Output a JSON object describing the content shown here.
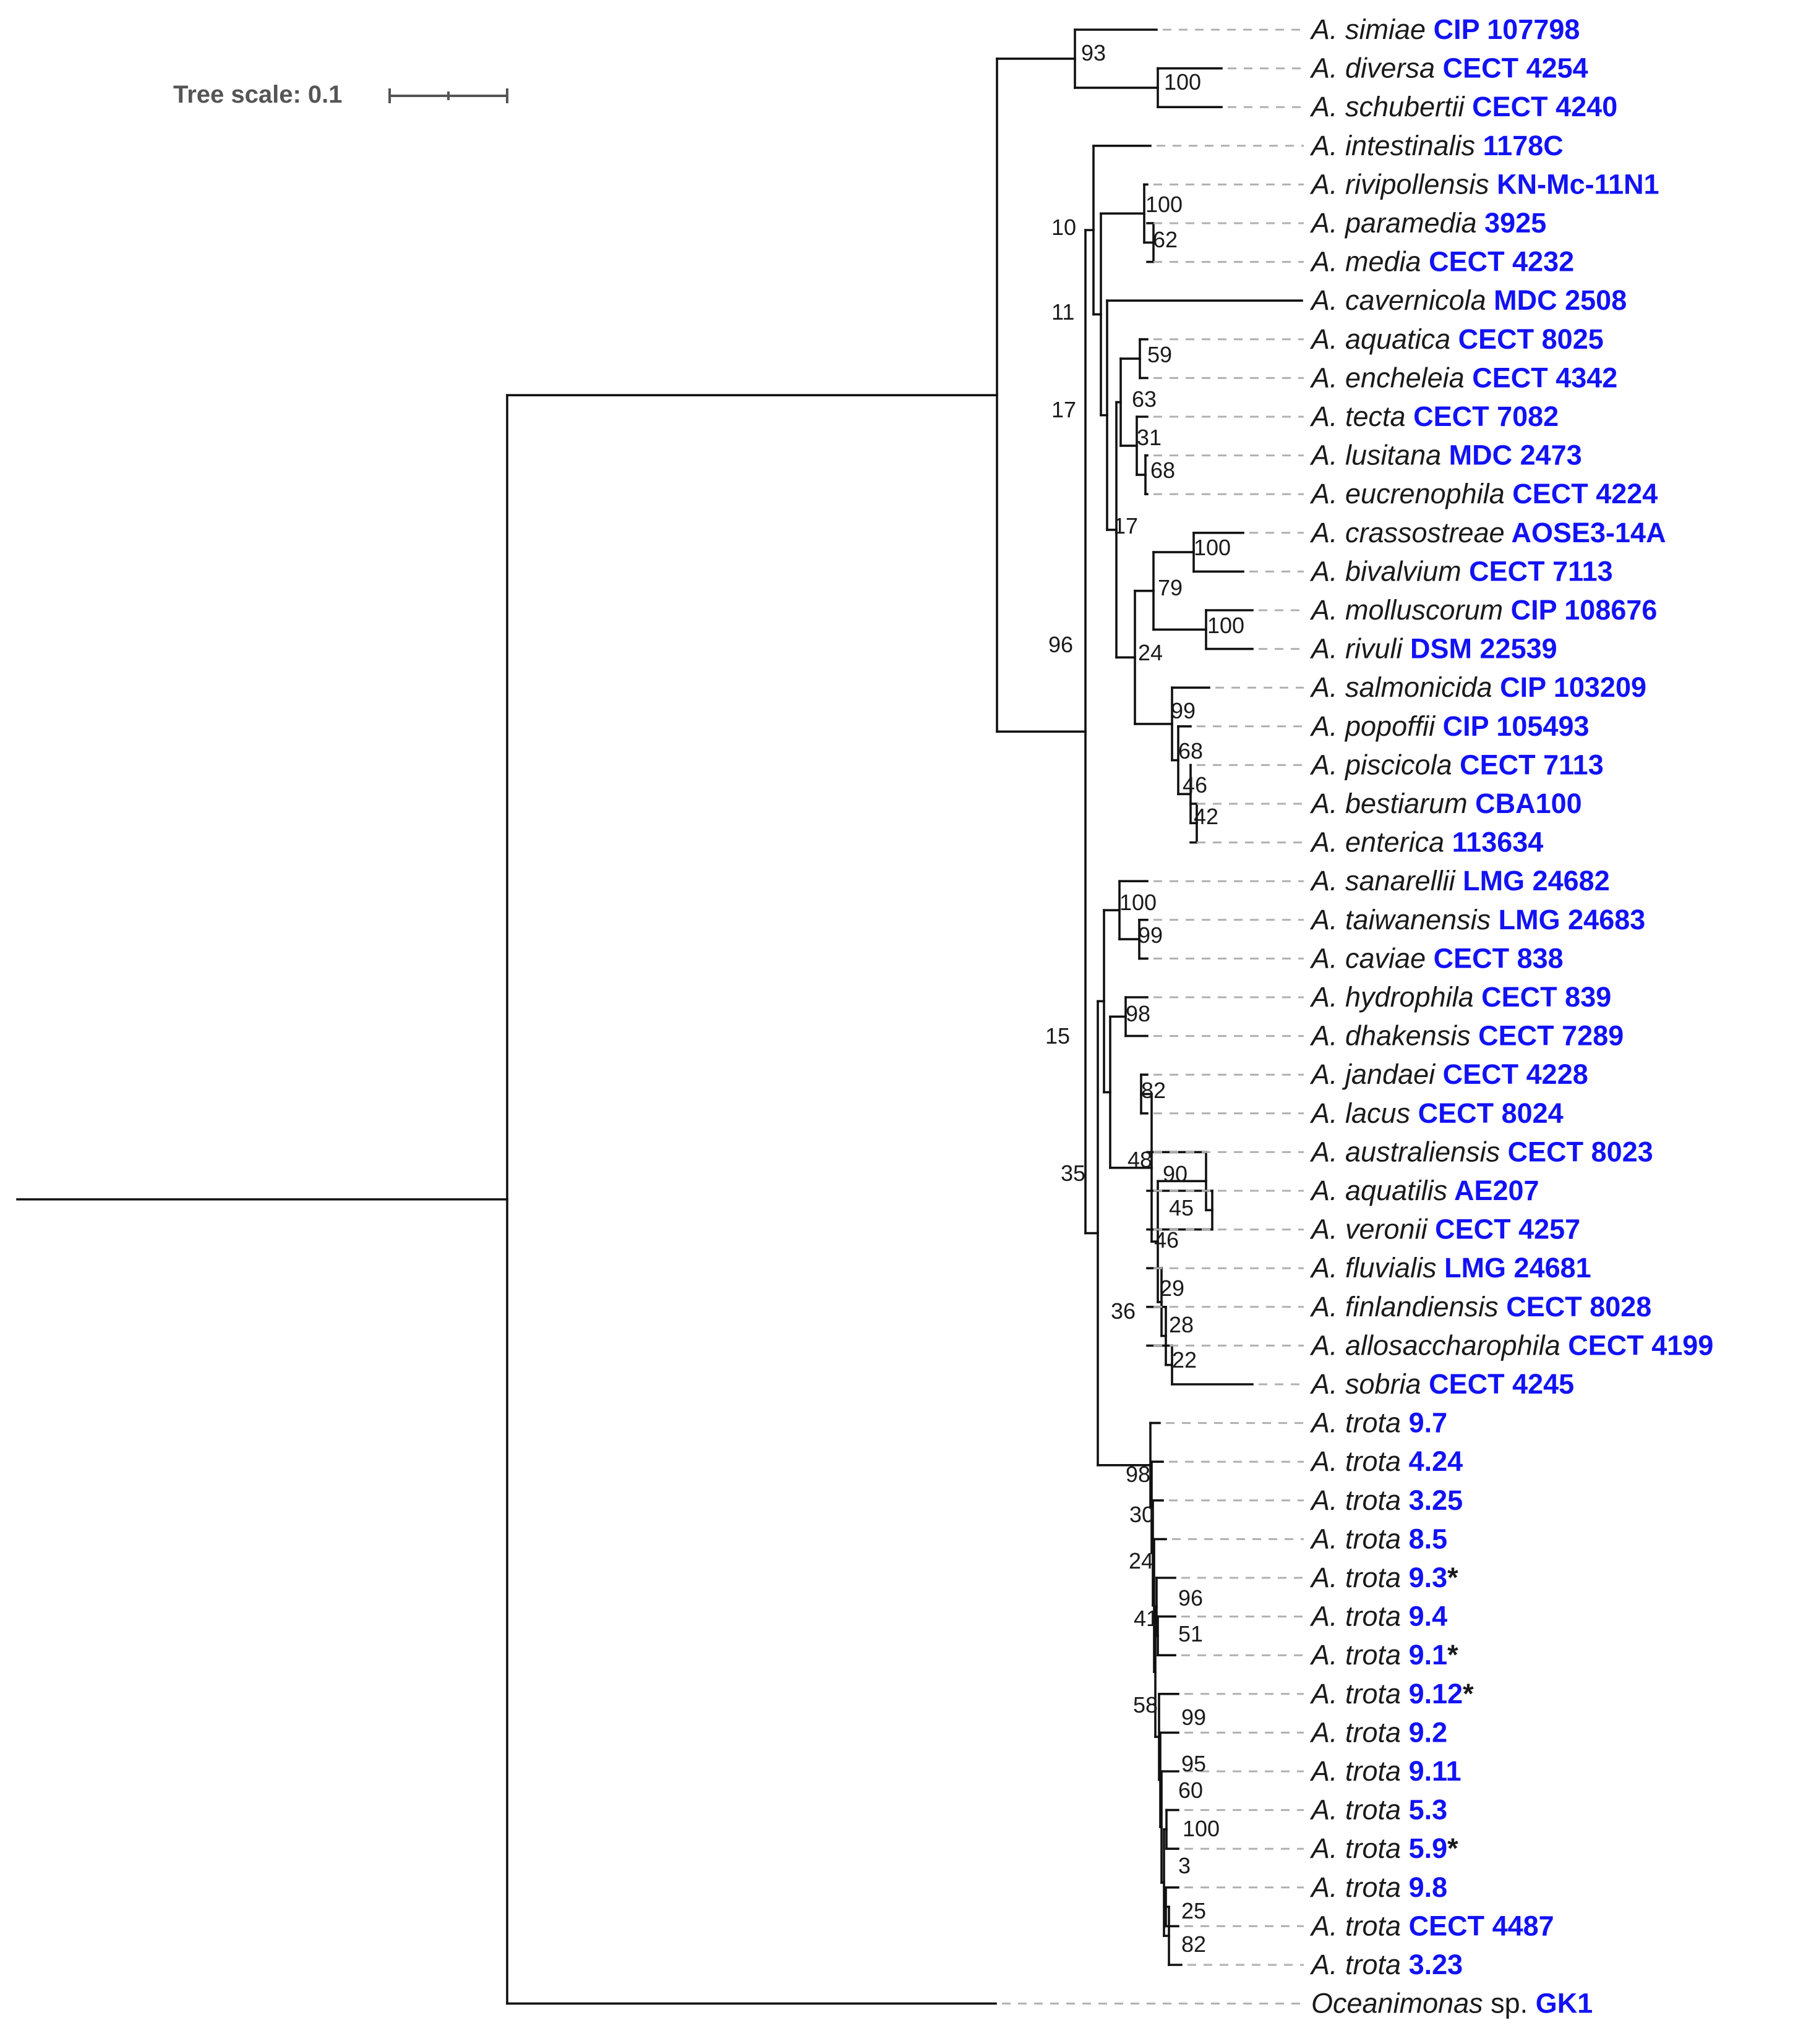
{
  "scale": {
    "label": "Tree scale: 0.1"
  },
  "taxa": [
    {
      "species": "A. simiae",
      "strain": "CIP 107798"
    },
    {
      "species": "A. diversa",
      "strain": "CECT 4254"
    },
    {
      "species": "A. schubertii",
      "strain": "CECT 4240"
    },
    {
      "species": "A. intestinalis",
      "strain": "1178C"
    },
    {
      "species": "A. rivipollensis",
      "strain": "KN-Mc-11N1"
    },
    {
      "species": "A. paramedia",
      "strain": "3925"
    },
    {
      "species": "A. media",
      "strain": "CECT 4232"
    },
    {
      "species": "A. cavernicola",
      "strain": "MDC 2508"
    },
    {
      "species": "A. aquatica",
      "strain": "CECT 8025"
    },
    {
      "species": "A. encheleia",
      "strain": "CECT 4342"
    },
    {
      "species": "A. tecta",
      "strain": "CECT 7082"
    },
    {
      "species": "A. lusitana",
      "strain": "MDC 2473"
    },
    {
      "species": "A. eucrenophila",
      "strain": "CECT 4224"
    },
    {
      "species": "A. crassostreae",
      "strain": "AOSE3-14A"
    },
    {
      "species": "A. bivalvium",
      "strain": "CECT 7113"
    },
    {
      "species": "A. molluscorum",
      "strain": "CIP 108676"
    },
    {
      "species": "A. rivuli",
      "strain": "DSM 22539"
    },
    {
      "species": "A. salmonicida",
      "strain": "CIP 103209"
    },
    {
      "species": "A. popoffii",
      "strain": "CIP 105493"
    },
    {
      "species": "A. piscicola",
      "strain": "CECT 7113"
    },
    {
      "species": "A. bestiarum",
      "strain": "CBA100"
    },
    {
      "species": "A. enterica",
      "strain": "113634"
    },
    {
      "species": "A. sanarellii",
      "strain": "LMG 24682"
    },
    {
      "species": "A. taiwanensis",
      "strain": "LMG 24683"
    },
    {
      "species": "A. caviae",
      "strain": "CECT 838"
    },
    {
      "species": "A. hydrophila",
      "strain": "CECT 839"
    },
    {
      "species": "A. dhakensis",
      "strain": "CECT 7289"
    },
    {
      "species": "A. jandaei",
      "strain": "CECT 4228"
    },
    {
      "species": "A. lacus",
      "strain": "CECT 8024"
    },
    {
      "species": "A. australiensis",
      "strain": "CECT 8023"
    },
    {
      "species": "A. aquatilis",
      "strain": "AE207"
    },
    {
      "species": "A. veronii",
      "strain": "CECT 4257"
    },
    {
      "species": "A. fluvialis",
      "strain": "LMG 24681"
    },
    {
      "species": "A. finlandiensis",
      "strain": "CECT 8028"
    },
    {
      "species": "A. allosaccharophila",
      "strain": "CECT 4199"
    },
    {
      "species": "A. sobria",
      "strain": "CECT 4245"
    },
    {
      "species": "A. trota",
      "strain": "9.7"
    },
    {
      "species": "A. trota",
      "strain": "4.24"
    },
    {
      "species": "A. trota",
      "strain": "3.25"
    },
    {
      "species": "A. trota",
      "strain": "8.5"
    },
    {
      "species": "A. trota",
      "strain": "9.3",
      "mark": "*"
    },
    {
      "species": "A. trota",
      "strain": "9.4"
    },
    {
      "species": "A. trota",
      "strain": "9.1",
      "mark": "*"
    },
    {
      "species": "A. trota",
      "strain": "9.12",
      "mark": "*"
    },
    {
      "species": "A. trota",
      "strain": "9.2"
    },
    {
      "species": "A. trota",
      "strain": "9.11"
    },
    {
      "species": "A. trota",
      "strain": "5.3"
    },
    {
      "species": "A. trota",
      "strain": "5.9",
      "mark": "*"
    },
    {
      "species": "A. trota",
      "strain": "9.8"
    },
    {
      "species": "A. trota",
      "strain": "CECT 4487"
    },
    {
      "species": "A. trota",
      "strain": "3.23"
    },
    {
      "species": "Oceanimonas",
      "genus_suffix": "sp.",
      "strain": "GK1"
    }
  ],
  "bootstrap_values": [
    "93",
    "100",
    "10",
    "100",
    "62",
    "11",
    "59",
    "17",
    "63",
    "31",
    "68",
    "17",
    "100",
    "79",
    "100",
    "96",
    "24",
    "99",
    "68",
    "46",
    "42",
    "100",
    "99",
    "98",
    "15",
    "82",
    "35",
    "48",
    "90",
    "45",
    "46",
    "29",
    "28",
    "22",
    "36",
    "98",
    "30",
    "24",
    "96",
    "41",
    "51",
    "58",
    "99",
    "95",
    "60",
    "100",
    "3",
    "25",
    "82"
  ]
}
